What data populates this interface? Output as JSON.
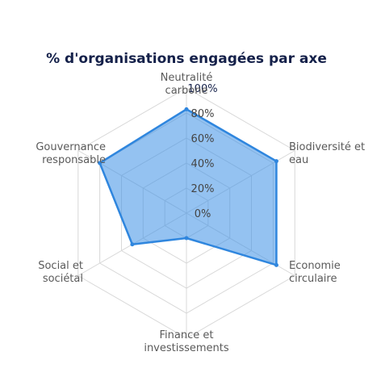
{
  "chart_data": {
    "type": "radar",
    "title": "% d'organisations engagées par axe",
    "axes": [
      [
        "Neutralité",
        "carbone"
      ],
      [
        "Biodiversité et",
        "eau"
      ],
      [
        "Economie",
        "circulaire"
      ],
      [
        "Finance et",
        "investissements"
      ],
      [
        "Social et",
        "sociétal"
      ],
      [
        "Gouvernance",
        "responsable"
      ]
    ],
    "categories": [
      "Neutralité carbone",
      "Biodiversité et eau",
      "Economie circulaire",
      "Finance et investissements",
      "Social et sociétal",
      "Gouvernance responsable"
    ],
    "values": [
      83,
      83,
      83,
      20,
      50,
      80
    ],
    "rlim": [
      0,
      100
    ],
    "ticks": [
      "0%",
      "20%",
      "40%",
      "60%",
      "80%",
      "100%"
    ],
    "grid": true,
    "colors": {
      "fill": "#3d8fe6",
      "stroke": "#2f86de",
      "title": "#15214a"
    }
  }
}
